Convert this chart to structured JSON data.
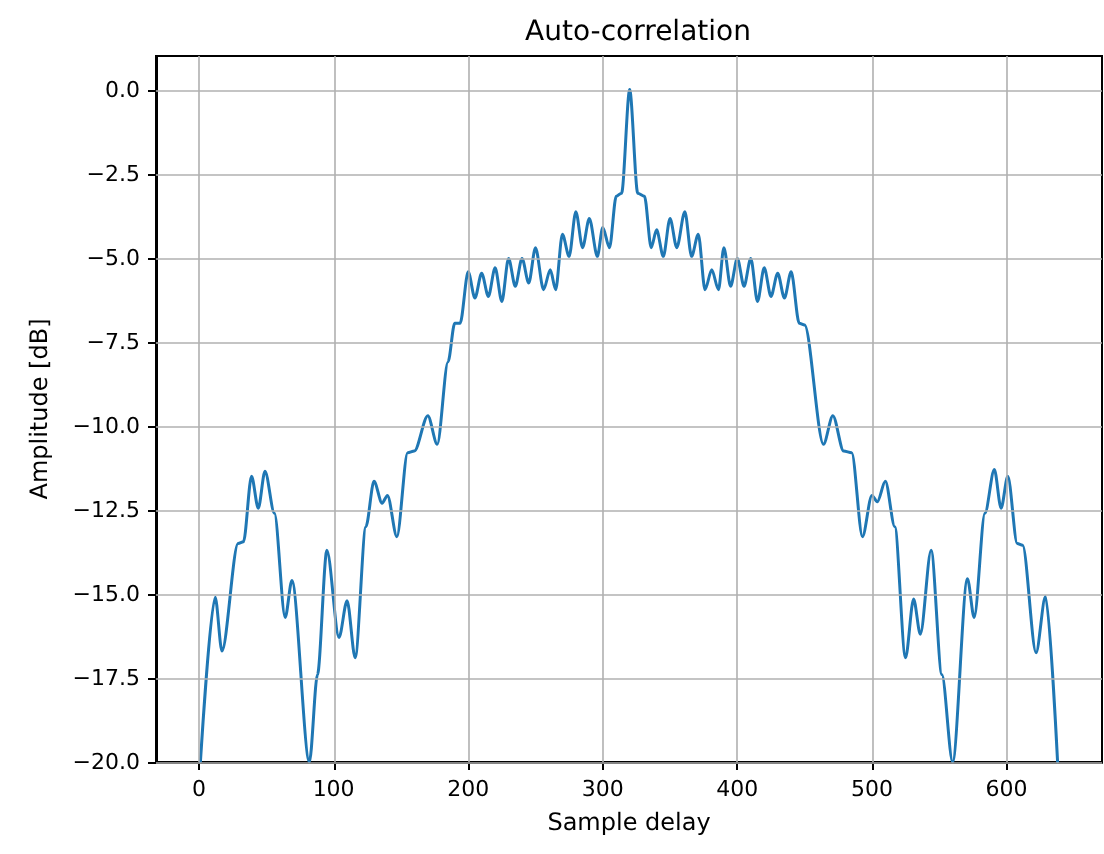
{
  "chart_data": {
    "type": "line",
    "title": "Auto-correlation",
    "xlabel": "Sample delay",
    "ylabel": "Amplitude [dB]",
    "x": [
      1,
      12,
      17,
      29,
      33,
      39,
      44,
      49,
      56,
      64,
      69,
      82,
      88,
      95,
      104,
      110,
      116,
      124,
      130,
      136,
      140,
      147,
      155,
      160,
      170,
      177,
      185,
      190,
      194,
      200,
      205,
      210,
      215,
      220,
      225,
      230,
      235,
      240,
      245,
      250,
      256,
      261,
      265,
      270,
      275,
      280,
      285,
      290,
      296,
      300,
      305,
      310,
      314,
      320,
      326,
      331,
      336,
      340,
      345,
      350,
      355,
      361,
      366,
      371,
      376,
      381,
      386,
      390,
      395,
      400,
      405,
      410,
      415,
      420,
      425,
      430,
      435,
      440,
      446,
      450,
      464,
      471,
      479,
      485,
      493,
      500,
      504,
      510,
      517,
      525,
      531,
      536,
      544,
      552,
      560,
      571,
      576,
      584,
      591,
      596,
      601,
      608,
      612,
      622,
      629,
      638
    ],
    "series": [
      {
        "color": "#1f77b4",
        "values": [
          -20,
          -15.1,
          -16.7,
          -13.5,
          -13.45,
          -11.5,
          -12.45,
          -11.35,
          -12.6,
          -15.7,
          -14.6,
          -20,
          -17.4,
          -13.7,
          -16.3,
          -15.2,
          -16.9,
          -13.0,
          -11.65,
          -12.3,
          -12.07,
          -13.3,
          -10.8,
          -10.75,
          -9.7,
          -10.55,
          -8.1,
          -6.95,
          -6.95,
          -5.42,
          -6.2,
          -5.46,
          -6.15,
          -5.3,
          -6.3,
          -5.02,
          -5.85,
          -5.02,
          -5.75,
          -4.7,
          -5.95,
          -5.36,
          -5.95,
          -4.3,
          -4.96,
          -3.63,
          -4.7,
          -3.83,
          -4.96,
          -4.1,
          -4.7,
          -3.17,
          -3.08,
          0,
          -3.08,
          -3.17,
          -4.7,
          -4.17,
          -4.96,
          -3.83,
          -4.7,
          -3.63,
          -4.96,
          -4.3,
          -5.95,
          -5.36,
          -5.95,
          -4.7,
          -5.85,
          -5.02,
          -5.85,
          -5.02,
          -6.3,
          -5.3,
          -6.15,
          -5.46,
          -6.2,
          -5.42,
          -6.95,
          -7.0,
          -10.55,
          -9.7,
          -10.75,
          -10.8,
          -13.3,
          -12.07,
          -12.26,
          -11.65,
          -13.0,
          -16.9,
          -15.15,
          -16.2,
          -13.7,
          -17.4,
          -20,
          -14.55,
          -15.7,
          -12.6,
          -11.3,
          -12.45,
          -11.5,
          -13.5,
          -13.55,
          -16.75,
          -15.08,
          -20
        ]
      }
    ],
    "xlim": [
      -32,
      671
    ],
    "ylim": [
      -20,
      1
    ],
    "xticks": [
      0,
      100,
      200,
      300,
      400,
      500,
      600
    ],
    "yticks": [
      {
        "value": 0,
        "label": "0.0"
      },
      {
        "value": -2.5,
        "label": "−2.5"
      },
      {
        "value": -5,
        "label": "−5.0"
      },
      {
        "value": -7.5,
        "label": "−7.5"
      },
      {
        "value": -10,
        "label": "−10.0"
      },
      {
        "value": -12.5,
        "label": "−12.5"
      },
      {
        "value": -15,
        "label": "−15.0"
      },
      {
        "value": -17.5,
        "label": "−17.5"
      },
      {
        "value": -20,
        "label": "−20.0"
      }
    ],
    "grid": true,
    "marker": "none",
    "line_style": "solid"
  }
}
